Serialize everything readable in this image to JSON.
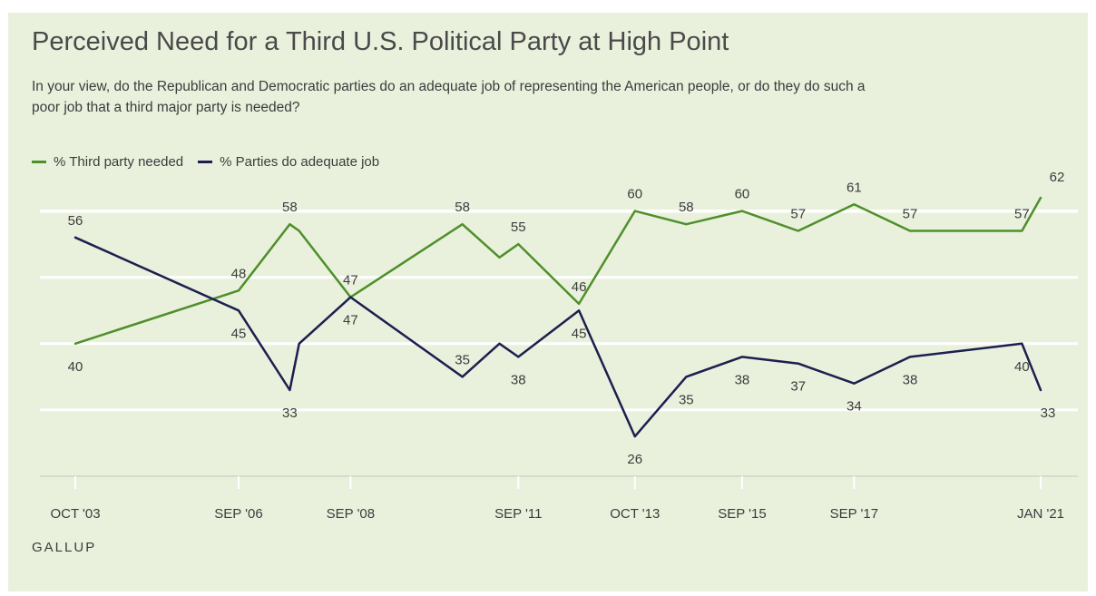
{
  "chart_data": {
    "type": "line",
    "title": "Perceived Need for a Third U.S. Political Party at High Point",
    "subtitle": "In your view, do the Republican and Democratic parties do an adequate job of representing the American people, or do they do such a poor job that a third major party is needed?",
    "x_tick_labels": [
      "OCT '03",
      "SEP '06",
      "SEP '08",
      "SEP '11",
      "OCT '13",
      "SEP '15",
      "SEP '17",
      "JAN '21"
    ],
    "x_tick_dates": [
      "2003-10-15",
      "2006-09-15",
      "2008-09-15",
      "2011-09-15",
      "2013-10-15",
      "2015-09-15",
      "2017-09-15",
      "2021-01-15"
    ],
    "ylim": [
      20,
      70
    ],
    "gridlines": [
      30,
      40,
      50,
      60
    ],
    "grid": true,
    "legend_position": "top-left",
    "series": [
      {
        "name": "% Third party needed",
        "color": "#4f8f2b",
        "points": [
          {
            "x": "2003-10-15",
            "y": 40,
            "label": "40",
            "pos": "below"
          },
          {
            "x": "2006-09-15",
            "y": 48,
            "label": "48",
            "pos": "above"
          },
          {
            "x": "2007-08-15",
            "y": 58,
            "label": "58",
            "pos": "above"
          },
          {
            "x": "2007-10-15",
            "y": 57
          },
          {
            "x": "2008-09-15",
            "y": 47,
            "label": "47",
            "pos": "above"
          },
          {
            "x": "2010-09-15",
            "y": 58,
            "label": "58",
            "pos": "above"
          },
          {
            "x": "2011-05-15",
            "y": 53
          },
          {
            "x": "2011-09-15",
            "y": 55,
            "label": "55",
            "pos": "above"
          },
          {
            "x": "2012-10-15",
            "y": 46,
            "label": "46",
            "pos": "above"
          },
          {
            "x": "2013-10-15",
            "y": 60,
            "label": "60",
            "pos": "above"
          },
          {
            "x": "2014-09-15",
            "y": 58,
            "label": "58",
            "pos": "above"
          },
          {
            "x": "2015-09-15",
            "y": 60,
            "label": "60",
            "pos": "above"
          },
          {
            "x": "2016-09-15",
            "y": 57,
            "label": "57",
            "pos": "above"
          },
          {
            "x": "2017-09-15",
            "y": 61,
            "label": "61",
            "pos": "above"
          },
          {
            "x": "2018-09-15",
            "y": 57,
            "label": "57",
            "pos": "above"
          },
          {
            "x": "2020-09-15",
            "y": 57,
            "label": "57",
            "pos": "above"
          },
          {
            "x": "2021-01-15",
            "y": 62,
            "label": "62",
            "pos": "above"
          }
        ]
      },
      {
        "name": "% Parties do adequate job",
        "color": "#1c1f4f",
        "points": [
          {
            "x": "2003-10-15",
            "y": 56,
            "label": "56",
            "pos": "above"
          },
          {
            "x": "2006-09-15",
            "y": 45,
            "label": "45",
            "pos": "below"
          },
          {
            "x": "2007-08-15",
            "y": 33,
            "label": "33",
            "pos": "below"
          },
          {
            "x": "2007-10-15",
            "y": 40
          },
          {
            "x": "2008-09-15",
            "y": 47,
            "label": "47",
            "pos": "below"
          },
          {
            "x": "2010-09-15",
            "y": 35,
            "label": "35",
            "pos": "above"
          },
          {
            "x": "2011-05-15",
            "y": 40
          },
          {
            "x": "2011-09-15",
            "y": 38,
            "label": "38",
            "pos": "below"
          },
          {
            "x": "2012-10-15",
            "y": 45,
            "label": "45",
            "pos": "below"
          },
          {
            "x": "2013-10-15",
            "y": 26,
            "label": "26",
            "pos": "below"
          },
          {
            "x": "2014-09-15",
            "y": 35,
            "label": "35",
            "pos": "below"
          },
          {
            "x": "2015-09-15",
            "y": 38,
            "label": "38",
            "pos": "below"
          },
          {
            "x": "2016-09-15",
            "y": 37,
            "label": "37",
            "pos": "below"
          },
          {
            "x": "2017-09-15",
            "y": 34,
            "label": "34",
            "pos": "below"
          },
          {
            "x": "2018-09-15",
            "y": 38,
            "label": "38",
            "pos": "below"
          },
          {
            "x": "2020-09-15",
            "y": 40,
            "label": "40",
            "pos": "below"
          },
          {
            "x": "2021-01-15",
            "y": 33,
            "label": "33",
            "pos": "below"
          }
        ]
      }
    ]
  },
  "footer": {
    "brand": "GALLUP"
  }
}
